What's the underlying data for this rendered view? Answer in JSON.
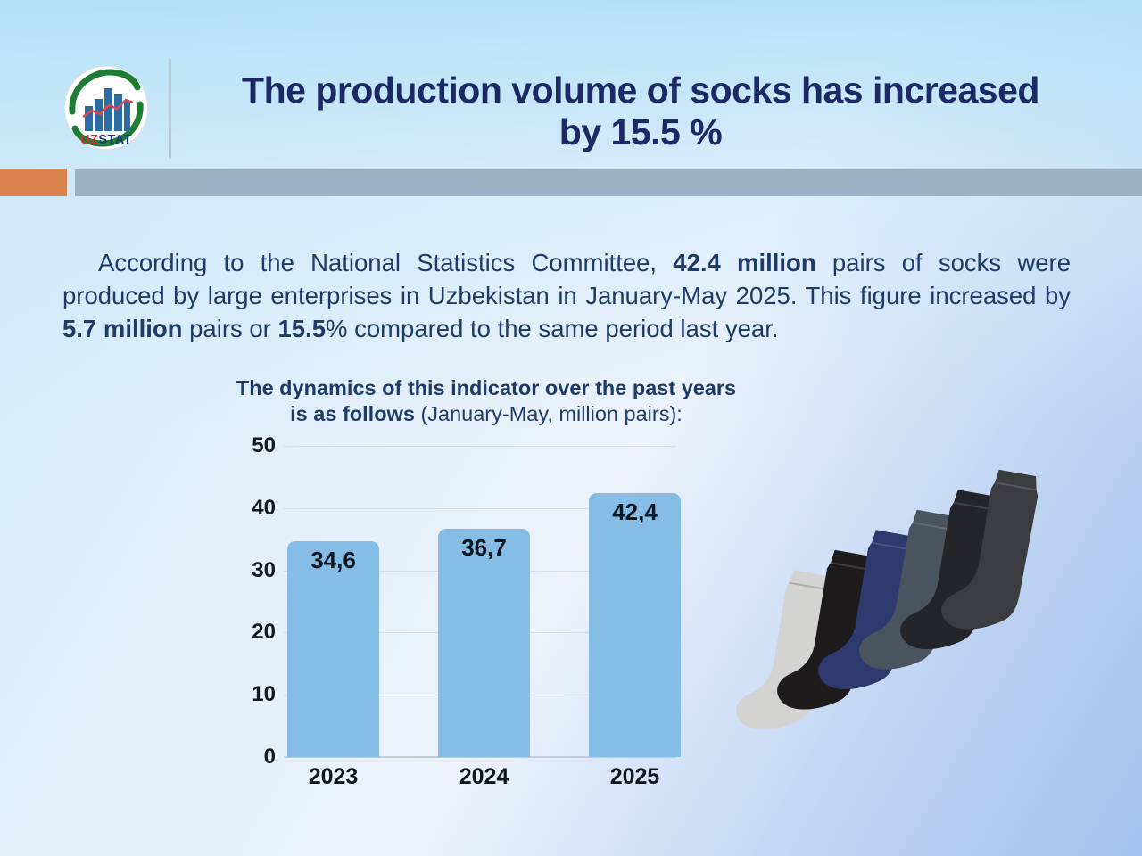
{
  "slide_title": {
    "line1": "The production volume of socks has increased",
    "line2": "by 15.5 %"
  },
  "logo": {
    "uz": "UZ",
    "stat": "STAT",
    "uz_color": "#d22f2f",
    "stat_color": "#173d7a",
    "swoosh_color": "#1e7c35",
    "bars_color": "#2b6ca3",
    "trend_line_color": "#e0474d"
  },
  "paragraph": {
    "segments": [
      {
        "t": "According to the National Statistics Committee, ",
        "b": false
      },
      {
        "t": "42.4 million",
        "b": true
      },
      {
        "t": " pairs of socks were produced by large enterprises in Uzbekistan in January-May 2025. This figure increased by ",
        "b": false
      },
      {
        "t": "5.7 million",
        "b": true
      },
      {
        "t": " pairs or ",
        "b": false
      },
      {
        "t": "15.5",
        "b": true
      },
      {
        "t": "% compared to the same period last year.",
        "b": false
      }
    ]
  },
  "chart_caption": {
    "lines": [
      [
        {
          "t": "The dynamics of this indicator over the past years",
          "b": true
        }
      ],
      [
        {
          "t": "is as follows ",
          "b": true
        },
        {
          "t": "(January-May, million pairs):",
          "b": false
        }
      ]
    ]
  },
  "chart_data": {
    "type": "bar",
    "title": "The dynamics of this indicator over the past years is as follows (January-May, million pairs):",
    "categories": [
      "2023",
      "2024",
      "2025"
    ],
    "values": [
      34.6,
      36.7,
      42.4
    ],
    "value_labels": [
      "34,6",
      "36,7",
      "42,4"
    ],
    "xlabel": "",
    "ylabel": "",
    "ylim": [
      0,
      50
    ],
    "yticks": [
      0,
      10,
      20,
      30,
      40,
      50
    ],
    "grid": true,
    "legend": false,
    "bar_color": "#85bde6",
    "label_position": "inside-top",
    "units": "million pairs"
  },
  "socks_image": {
    "description": "six socks arranged diagonally, ascending left to right",
    "colors": [
      "#d3d3d1",
      "#1d1b1c",
      "#2e3a6e",
      "#49545f",
      "#232529",
      "#3b3c40"
    ]
  },
  "colors": {
    "title": "#1b2a66",
    "body_text": "#1e3a66",
    "accent_orange": "#d8834b",
    "gray_band": "#9db2c7",
    "bar": "#85bde6",
    "background_top": "#b2e0f7",
    "background_bottom_right": "#a3c2ee"
  }
}
